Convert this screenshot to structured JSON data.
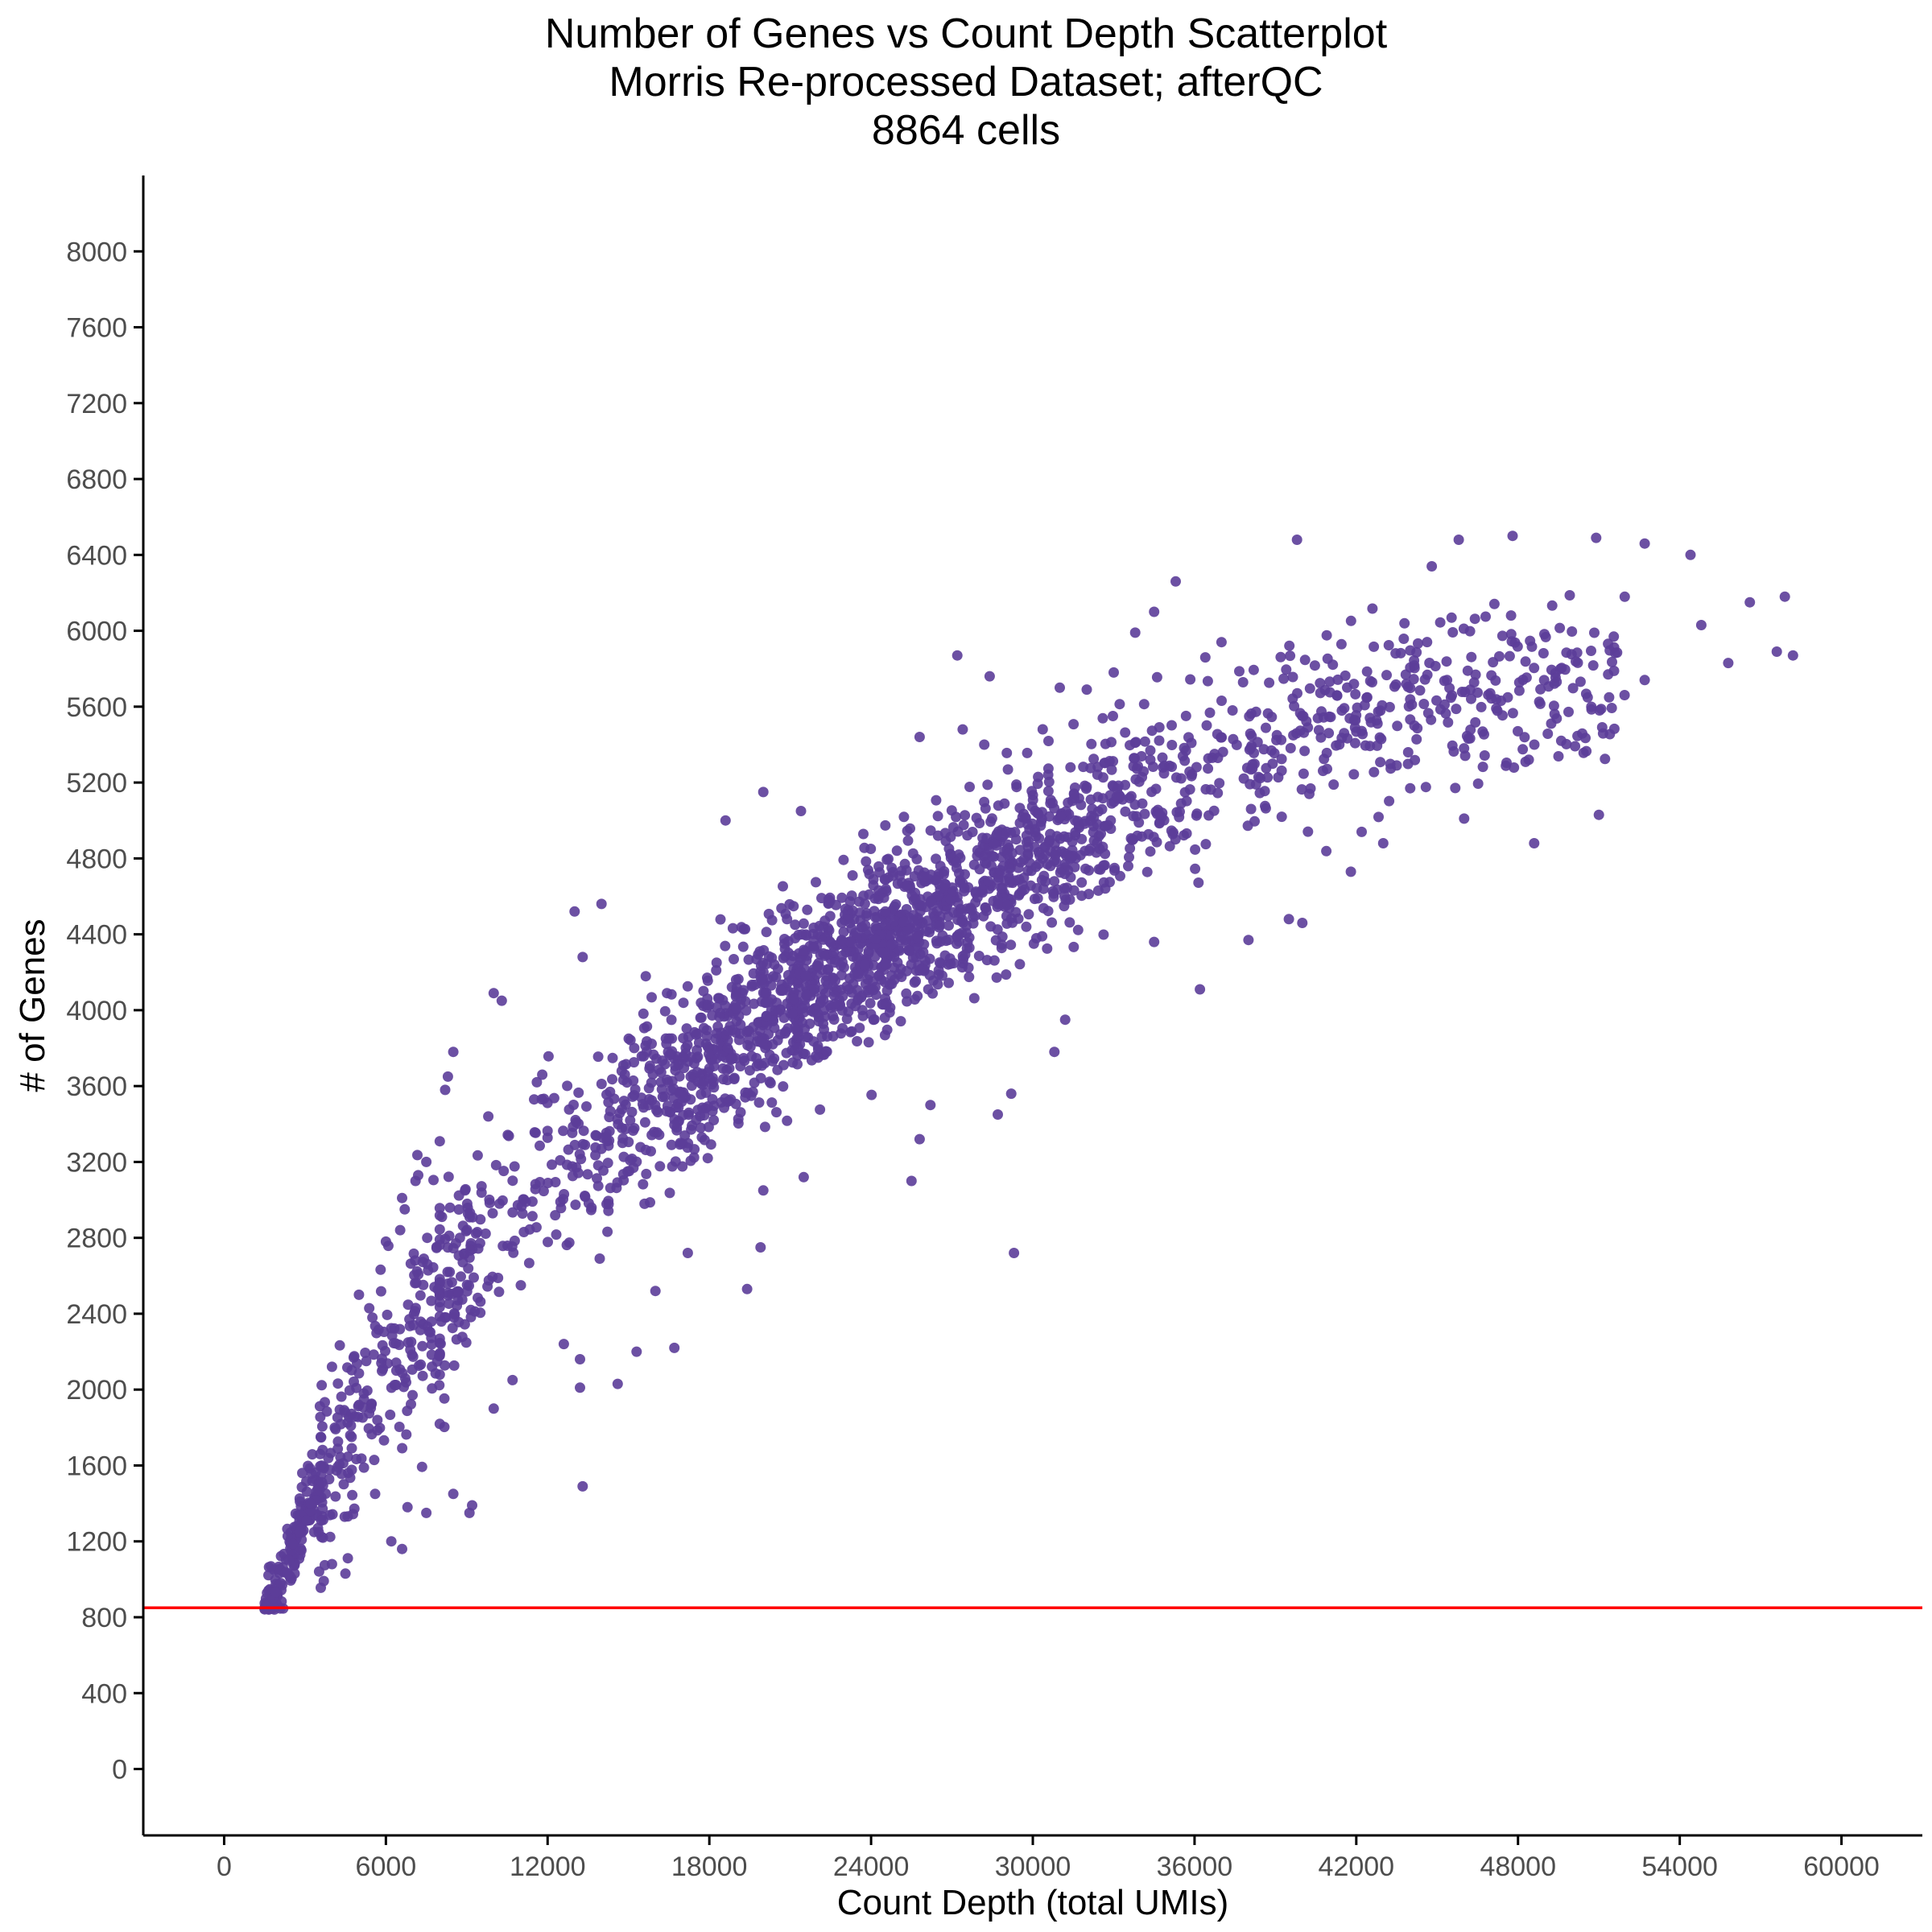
{
  "chart_data": {
    "type": "scatter",
    "title": "Number of Genes vs Count Depth Scatterplot",
    "subtitle": "Morris Re-processed Dataset; afterQC",
    "subtitle2": "8864 cells",
    "xlabel": "Count Depth (total UMIs)",
    "ylabel": "# of Genes",
    "xlim": [
      -3000,
      63000
    ],
    "ylim": [
      -350,
      8400
    ],
    "xticks": [
      0,
      6000,
      12000,
      18000,
      24000,
      30000,
      36000,
      42000,
      48000,
      54000,
      60000
    ],
    "yticks": [
      0,
      400,
      800,
      1200,
      1600,
      2000,
      2400,
      2800,
      3200,
      3600,
      4000,
      4400,
      4800,
      5200,
      5600,
      6000,
      6400,
      6800,
      7200,
      7600,
      8000
    ],
    "grid": false,
    "point_color": "#5c3d99",
    "hline": {
      "y": 850,
      "color": "#ff0000"
    },
    "n_points": 8864,
    "trend": [
      [
        1500,
        840
      ],
      [
        2000,
        960
      ],
      [
        3000,
        1330
      ],
      [
        4000,
        1620
      ],
      [
        6000,
        2100
      ],
      [
        8000,
        2480
      ],
      [
        10000,
        2830
      ],
      [
        12000,
        3120
      ],
      [
        15000,
        3460
      ],
      [
        18000,
        3780
      ],
      [
        21000,
        4060
      ],
      [
        24000,
        4330
      ],
      [
        27000,
        4580
      ],
      [
        30000,
        4800
      ],
      [
        33000,
        5020
      ],
      [
        36000,
        5220
      ],
      [
        40000,
        5460
      ],
      [
        44000,
        5620
      ],
      [
        48000,
        5720
      ],
      [
        52000,
        5800
      ],
      [
        58000,
        5880
      ]
    ],
    "points": [
      [
        1500,
        845
      ],
      [
        1600,
        860
      ],
      [
        1700,
        880
      ],
      [
        1800,
        900
      ],
      [
        1900,
        930
      ],
      [
        2100,
        980
      ],
      [
        2400,
        1100
      ],
      [
        2800,
        1250
      ],
      [
        3200,
        1400
      ],
      [
        3600,
        1550
      ],
      [
        4000,
        2120
      ],
      [
        5000,
        2500
      ],
      [
        5500,
        2380
      ],
      [
        6000,
        2780
      ],
      [
        6600,
        3010
      ],
      [
        6700,
        2950
      ],
      [
        7100,
        3100
      ],
      [
        7200,
        3130
      ],
      [
        7500,
        3200
      ],
      [
        8200,
        3580
      ],
      [
        8300,
        3650
      ],
      [
        8500,
        3780
      ],
      [
        9800,
        3440
      ],
      [
        10000,
        4090
      ],
      [
        10300,
        4050
      ],
      [
        11500,
        3530
      ],
      [
        11800,
        3660
      ],
      [
        11600,
        3620
      ],
      [
        13000,
        4520
      ],
      [
        13300,
        4280
      ],
      [
        14000,
        4560
      ],
      [
        5600,
        1450
      ],
      [
        6200,
        1200
      ],
      [
        6600,
        1160
      ],
      [
        6800,
        1380
      ],
      [
        7500,
        1350
      ],
      [
        8500,
        1450
      ],
      [
        9100,
        1350
      ],
      [
        9200,
        1390
      ],
      [
        10000,
        1900
      ],
      [
        10700,
        2050
      ],
      [
        12600,
        2240
      ],
      [
        13200,
        2010
      ],
      [
        13200,
        2160
      ],
      [
        14600,
        2030
      ],
      [
        15300,
        2200
      ],
      [
        16700,
        2220
      ],
      [
        17200,
        2720
      ],
      [
        19400,
        2530
      ],
      [
        19900,
        2750
      ],
      [
        13300,
        1490
      ],
      [
        4500,
        1030
      ],
      [
        4000,
        1080
      ],
      [
        3600,
        1310
      ],
      [
        16000,
        2520
      ],
      [
        20000,
        3050
      ],
      [
        21500,
        3120
      ],
      [
        25500,
        3100
      ],
      [
        25800,
        3320
      ],
      [
        26200,
        3500
      ],
      [
        28700,
        3450
      ],
      [
        29300,
        2720
      ],
      [
        29200,
        3560
      ],
      [
        30800,
        3780
      ],
      [
        31200,
        3950
      ],
      [
        34500,
        4360
      ],
      [
        36200,
        4110
      ],
      [
        38000,
        4370
      ],
      [
        39500,
        4480
      ],
      [
        40000,
        4460
      ],
      [
        41800,
        4730
      ],
      [
        43000,
        4880
      ],
      [
        46000,
        5010
      ],
      [
        48600,
        4880
      ],
      [
        51000,
        5030
      ],
      [
        39800,
        6480
      ],
      [
        35300,
        6260
      ],
      [
        44800,
        6340
      ],
      [
        45800,
        6480
      ],
      [
        47800,
        6500
      ],
      [
        50900,
        6490
      ],
      [
        52700,
        6460
      ],
      [
        54400,
        6400
      ],
      [
        56600,
        6150
      ],
      [
        57900,
        6180
      ],
      [
        58200,
        5870
      ],
      [
        57600,
        5890
      ],
      [
        52700,
        5740
      ],
      [
        54800,
        6030
      ],
      [
        55800,
        5830
      ],
      [
        42200,
        4940
      ],
      [
        43500,
        5290
      ],
      [
        44000,
        5170
      ],
      [
        48400,
        5320
      ],
      [
        18600,
        5000
      ],
      [
        21400,
        5050
      ],
      [
        20000,
        5150
      ],
      [
        25800,
        5440
      ],
      [
        27400,
        5480
      ],
      [
        28200,
        5400
      ],
      [
        28400,
        5760
      ],
      [
        31000,
        5700
      ],
      [
        32000,
        5690
      ],
      [
        33000,
        5780
      ],
      [
        27200,
        5870
      ],
      [
        37000,
        5940
      ],
      [
        36400,
        5860
      ],
      [
        33800,
        5990
      ],
      [
        34500,
        6100
      ]
    ]
  }
}
